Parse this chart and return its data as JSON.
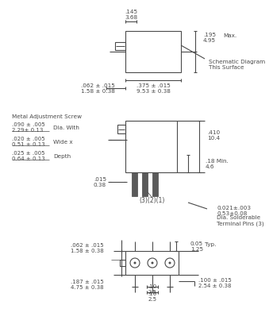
{
  "background_color": "#ffffff",
  "text_color": "#4a4a4a",
  "line_color": "#4a4a4a",
  "dim_labels": {
    "top_width": ".145\n3.68",
    "top_height": ".195\n4.95",
    "top_max": "Max.",
    "top_bottom_width": ".375 ± .015\n9.53 ± 0.38",
    "top_left_dim": ".062 ± .015\n1.58 ± 0.38",
    "schematic": "Schematic Diagram\nThis Surface",
    "mid_height": ".410\n10.4",
    "mid_min": ".18 Min.\n4.6",
    "mid_slot": ".015\n0.38",
    "mid_pins": "(3)(2)(1)",
    "pin_dia": "0.021±.003\n0.53±0.08",
    "pin_label": "Dia. Solderable\nTerminal Pins (3)",
    "metal_screw": "Metal Adjustment Screw",
    "dia_with_val": ".090 ± .005\n2.29± 0.13",
    "dia_with_lbl": "Dia. With",
    "wide_val": ".020 ± .005\n0.51 ± 0.13",
    "wide_lbl": "Wide x",
    "depth_val": ".025 ± .005\n0.64 ± 0.13",
    "depth_lbl": "Depth",
    "bot_left_dim": ".062 ± .015\n1.58 ± 0.38",
    "bot_width": ".187 ± .015\n4.75 ± 0.38",
    "bot_right_dim": ".100 ± .015\n2.54 ± 0.38",
    "bot_typ": "0.05\n1.25",
    "bot_typ_lbl": "Typ.",
    "bot_pin1": ".10\n2.5",
    "bot_pin2": ".10\n2.5"
  }
}
